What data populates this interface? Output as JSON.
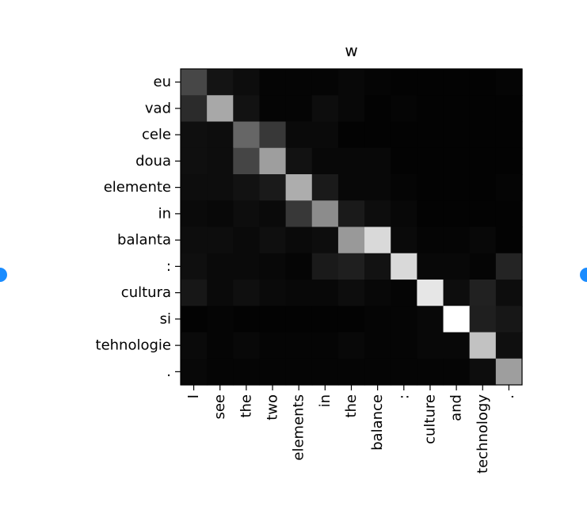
{
  "viewer": {
    "accent_color": "#1a8cff",
    "prev_icon": "circle-icon",
    "next_icon": "circle-icon"
  },
  "chart_data": {
    "type": "heatmap",
    "title": "w",
    "colormap": "gray",
    "grid": false,
    "x_labels": [
      "I",
      "see",
      "the",
      "two",
      "elements",
      "in",
      "the",
      "balance",
      ":",
      "culture",
      "and",
      "technology",
      "."
    ],
    "y_labels": [
      "eu",
      "vad",
      "cele",
      "doua",
      "elemente",
      "in",
      "balanta",
      ":",
      "cultura",
      "si",
      "tehnologie",
      "."
    ],
    "values": [
      [
        0.28,
        0.08,
        0.05,
        0.02,
        0.02,
        0.02,
        0.03,
        0.02,
        0.01,
        0.01,
        0.01,
        0.01,
        0.02
      ],
      [
        0.17,
        0.66,
        0.07,
        0.02,
        0.02,
        0.05,
        0.03,
        0.01,
        0.02,
        0.01,
        0.01,
        0.01,
        0.01
      ],
      [
        0.06,
        0.05,
        0.4,
        0.22,
        0.04,
        0.04,
        0.01,
        0.01,
        0.01,
        0.01,
        0.01,
        0.01,
        0.01
      ],
      [
        0.06,
        0.05,
        0.27,
        0.62,
        0.07,
        0.03,
        0.03,
        0.03,
        0.01,
        0.01,
        0.01,
        0.01,
        0.01
      ],
      [
        0.05,
        0.05,
        0.07,
        0.1,
        0.68,
        0.1,
        0.03,
        0.03,
        0.02,
        0.01,
        0.01,
        0.01,
        0.02
      ],
      [
        0.04,
        0.03,
        0.05,
        0.04,
        0.22,
        0.55,
        0.1,
        0.05,
        0.03,
        0.01,
        0.01,
        0.01,
        0.01
      ],
      [
        0.05,
        0.05,
        0.04,
        0.06,
        0.04,
        0.05,
        0.6,
        0.85,
        0.04,
        0.02,
        0.02,
        0.03,
        0.01
      ],
      [
        0.06,
        0.04,
        0.04,
        0.03,
        0.02,
        0.1,
        0.12,
        0.07,
        0.85,
        0.03,
        0.03,
        0.02,
        0.14
      ],
      [
        0.09,
        0.04,
        0.06,
        0.04,
        0.03,
        0.03,
        0.05,
        0.03,
        0.02,
        0.9,
        0.05,
        0.13,
        0.05
      ],
      [
        0.01,
        0.02,
        0.01,
        0.01,
        0.01,
        0.01,
        0.01,
        0.02,
        0.02,
        0.03,
        1.0,
        0.12,
        0.09
      ],
      [
        0.04,
        0.02,
        0.03,
        0.02,
        0.02,
        0.02,
        0.03,
        0.02,
        0.02,
        0.03,
        0.03,
        0.76,
        0.06
      ],
      [
        0.03,
        0.02,
        0.02,
        0.02,
        0.02,
        0.02,
        0.02,
        0.02,
        0.02,
        0.02,
        0.02,
        0.05,
        0.62
      ]
    ]
  }
}
